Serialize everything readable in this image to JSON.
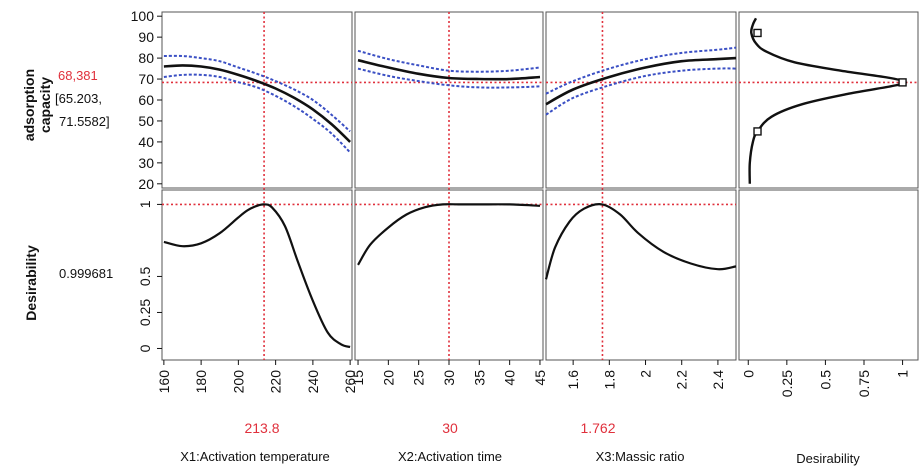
{
  "response1": {
    "label_line1": "adsorption",
    "label_line2": "capacity",
    "value": "68,381",
    "ci_line1": "[65.203,",
    "ci_line2": "71.5582]"
  },
  "response2": {
    "label": "Desirability",
    "value": "0.999681"
  },
  "factors": [
    {
      "name": "X1:Activation temperature",
      "current": "213.8"
    },
    {
      "name": "X2:Activation time",
      "current": "30"
    },
    {
      "name": "X3:Massic ratio",
      "current": "1.762"
    },
    {
      "name": "Desirability",
      "current": ""
    }
  ],
  "colors": {
    "accent": "#e0303c",
    "ci": "#3a4fc4",
    "curve": "#111111",
    "grid": "#555555"
  },
  "chart_data": {
    "type": "line",
    "title": "",
    "y_axes": {
      "adsorption_capacity": {
        "ylim": [
          18,
          102
        ],
        "ticks": [
          20,
          30,
          40,
          50,
          60,
          70,
          80,
          90,
          100
        ],
        "current": 68.381
      },
      "desirability": {
        "ylim": [
          -0.08,
          1.1
        ],
        "ticks": [
          0,
          0.25,
          0.5,
          1
        ],
        "tick_labels": [
          "0",
          "0.25",
          "0.5",
          "1"
        ],
        "current": 1
      }
    },
    "panels": [
      {
        "factor": "X1:Activation temperature",
        "xlim": [
          159,
          261
        ],
        "x_ticks": [
          160,
          180,
          200,
          220,
          240,
          260
        ],
        "current": 213.8,
        "adsorption": {
          "x": [
            160,
            170,
            180,
            190,
            200,
            210,
            220,
            230,
            240,
            250,
            260
          ],
          "y": [
            76,
            76.5,
            76,
            74.5,
            72,
            69,
            65.5,
            61,
            55.5,
            48.5,
            40
          ],
          "lower": [
            71,
            72,
            72,
            71,
            68.5,
            66,
            62,
            57,
            51,
            44,
            35
          ],
          "upper": [
            81,
            81,
            80,
            78.5,
            75.5,
            72.5,
            69,
            65,
            60,
            53,
            45
          ]
        },
        "desirability": {
          "x": [
            160,
            170,
            180,
            190,
            200,
            205,
            210,
            213.8,
            218,
            225,
            232,
            240,
            248,
            255,
            260
          ],
          "y": [
            0.74,
            0.71,
            0.73,
            0.8,
            0.91,
            0.96,
            0.99,
            1.0,
            0.98,
            0.85,
            0.6,
            0.33,
            0.11,
            0.03,
            0.01
          ]
        }
      },
      {
        "factor": "X2:Activation time",
        "xlim": [
          14.5,
          45.5
        ],
        "x_ticks": [
          15,
          20,
          25,
          30,
          35,
          40,
          45
        ],
        "current": 30,
        "adsorption": {
          "x": [
            15,
            20,
            25,
            30,
            35,
            40,
            45
          ],
          "y": [
            79,
            75.5,
            72.5,
            70.5,
            70,
            70,
            71
          ],
          "lower": [
            75,
            71.5,
            69,
            67,
            66,
            66,
            66.5
          ],
          "upper": [
            83.5,
            79.5,
            76.5,
            74,
            73.5,
            74,
            75.5
          ]
        },
        "desirability": {
          "x": [
            15,
            17,
            20,
            23,
            26,
            29,
            32,
            35,
            40,
            45
          ],
          "y": [
            0.58,
            0.72,
            0.84,
            0.93,
            0.98,
            1.0,
            1.0,
            1.0,
            1.0,
            0.99
          ]
        }
      },
      {
        "factor": "X3:Massic ratio",
        "xlim": [
          1.45,
          2.5
        ],
        "x_ticks": [
          1.6,
          1.8,
          2.0,
          2.2,
          2.4
        ],
        "tick_labels": [
          "1.6",
          "1.8",
          "2",
          "2.2",
          "2.4"
        ],
        "current": 1.762,
        "adsorption": {
          "x": [
            1.45,
            1.6,
            1.8,
            2.0,
            2.2,
            2.4,
            2.5
          ],
          "y": [
            58,
            65,
            71,
            75.5,
            78.5,
            79.5,
            80
          ],
          "lower": [
            53,
            61,
            67,
            71.5,
            74,
            75,
            75
          ],
          "upper": [
            63,
            69,
            75,
            79.5,
            82.5,
            84,
            85
          ]
        },
        "desirability": {
          "x": [
            1.45,
            1.5,
            1.58,
            1.66,
            1.76,
            1.86,
            1.96,
            2.1,
            2.25,
            2.4,
            2.5
          ],
          "y": [
            0.48,
            0.7,
            0.88,
            0.97,
            1.0,
            0.93,
            0.8,
            0.67,
            0.59,
            0.55,
            0.57
          ]
        }
      },
      {
        "factor": "Desirability",
        "xlim": [
          -0.06,
          1.1
        ],
        "x_ticks": [
          0,
          0.25,
          0.5,
          0.75,
          1
        ],
        "tick_labels": [
          "0",
          "0.25",
          "0.5",
          "0.75",
          "1"
        ],
        "desirability_function": {
          "d": [
            0.01,
            0.01,
            0.03,
            0.06,
            0.15,
            0.35,
            0.65,
            0.92,
            1.02,
            0.92,
            0.6,
            0.3,
            0.12,
            0.05,
            0.02,
            0.03,
            0.05
          ],
          "y": [
            20,
            30,
            40,
            45,
            52,
            58,
            63,
            66.5,
            68.4,
            70.5,
            74,
            78,
            83,
            87,
            92,
            96,
            99
          ]
        },
        "markers": [
          {
            "d": 0.06,
            "y": 45
          },
          {
            "d": 1.0,
            "y": 68.4
          },
          {
            "d": 0.06,
            "y": 92
          }
        ]
      }
    ]
  }
}
